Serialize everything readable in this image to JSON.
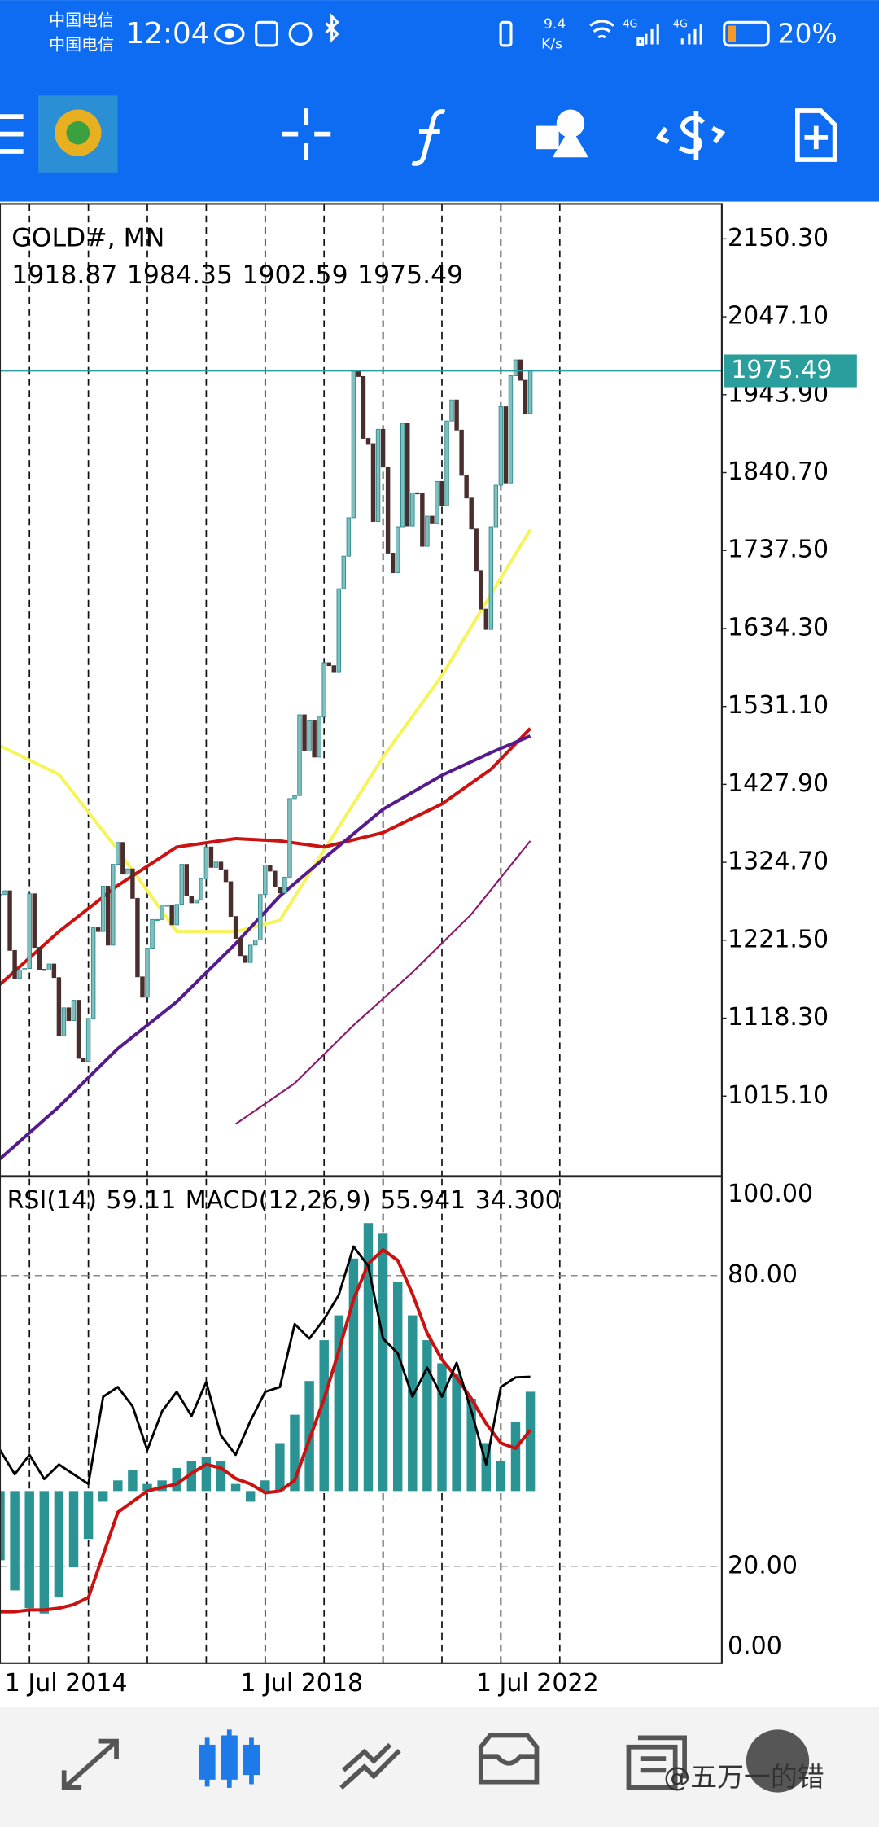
{
  "status_bar": {
    "carrier_1": "中国电信",
    "carrier_2": "中国电信",
    "time": "12:04",
    "net_speed": "9.4",
    "net_unit": "K/s",
    "network_1": "4G",
    "network_2": "4G",
    "battery": "20%"
  },
  "chart_data": [
    {
      "type": "candlestick",
      "title": "GOLD#, MN",
      "ohlc": [
        1918.87,
        1984.35,
        1902.59,
        1975.49
      ],
      "current_price": 1975.49,
      "current_price_color": "#2a9d9d",
      "up_color": "#7fbfbf",
      "down_color": "#4a2e2e",
      "x": [
        "2014-07-01",
        "2014-08-01",
        "2014-09-01",
        "2014-10-01",
        "2014-11-01",
        "2014-12-01",
        "2015-01-01",
        "2015-02-01",
        "2015-03-01",
        "2015-04-01",
        "2015-05-01",
        "2015-06-01",
        "2015-07-01",
        "2015-08-01",
        "2015-09-01",
        "2015-10-01",
        "2015-11-01",
        "2015-12-01",
        "2016-01-01",
        "2016-02-01",
        "2016-03-01",
        "2016-04-01",
        "2016-05-01",
        "2016-06-01",
        "2016-07-01",
        "2016-08-01",
        "2016-09-01",
        "2016-10-01",
        "2016-11-01",
        "2016-12-01",
        "2017-01-01",
        "2017-02-01",
        "2017-03-01",
        "2017-04-01",
        "2017-05-01",
        "2017-06-01",
        "2017-07-01",
        "2017-08-01",
        "2017-09-01",
        "2017-10-01",
        "2017-11-01",
        "2017-12-01",
        "2018-01-01",
        "2018-02-01",
        "2018-03-01",
        "2018-04-01",
        "2018-05-01",
        "2018-06-01",
        "2018-07-01",
        "2018-08-01",
        "2018-09-01",
        "2018-10-01",
        "2018-11-01",
        "2018-12-01",
        "2019-01-01",
        "2019-02-01",
        "2019-03-01",
        "2019-04-01",
        "2019-05-01",
        "2019-06-01",
        "2019-07-01",
        "2019-08-01",
        "2019-09-01",
        "2019-10-01",
        "2019-11-01",
        "2019-12-01",
        "2020-01-01",
        "2020-02-01",
        "2020-03-01",
        "2020-04-01",
        "2020-05-01",
        "2020-06-01",
        "2020-07-01",
        "2020-08-01",
        "2020-09-01",
        "2020-10-01",
        "2020-11-01",
        "2020-12-01",
        "2021-01-01",
        "2021-02-01",
        "2021-03-01",
        "2021-04-01",
        "2021-05-01",
        "2021-06-01",
        "2021-07-01",
        "2021-08-01",
        "2021-09-01",
        "2021-10-01",
        "2021-11-01",
        "2021-12-01",
        "2022-01-01",
        "2022-02-01",
        "2022-03-01",
        "2022-04-01",
        "2022-05-01",
        "2022-06-01",
        "2022-07-01",
        "2022-08-01",
        "2022-09-01",
        "2022-10-01",
        "2022-11-01",
        "2022-12-01",
        "2023-01-01",
        "2023-02-01",
        "2023-03-01",
        "2023-04-01",
        "2023-05-01",
        "2023-06-01",
        "2023-07-01"
      ],
      "values": [
        1282,
        1287,
        1208,
        1171,
        1182,
        1184,
        1283,
        1212,
        1183,
        1182,
        1190,
        1172,
        1095,
        1132,
        1115,
        1142,
        1065,
        1061,
        1118,
        1238,
        1233,
        1293,
        1215,
        1322,
        1351,
        1309,
        1316,
        1277,
        1173,
        1146,
        1211,
        1249,
        1249,
        1268,
        1268,
        1242,
        1269,
        1322,
        1280,
        1271,
        1275,
        1303,
        1345,
        1318,
        1325,
        1315,
        1299,
        1253,
        1224,
        1201,
        1192,
        1215,
        1222,
        1282,
        1321,
        1313,
        1292,
        1284,
        1305,
        1409,
        1413,
        1520,
        1472,
        1513,
        1464,
        1517,
        1589,
        1585,
        1577,
        1687,
        1730,
        1781,
        1975,
        1968,
        1886,
        1879,
        1776,
        1898,
        1848,
        1734,
        1708,
        1769,
        1906,
        1770,
        1814,
        1813,
        1743,
        1783,
        1774,
        1829,
        1797,
        1909,
        1937,
        1897,
        1837,
        1807,
        1766,
        1711,
        1660,
        1633,
        1769,
        1824,
        1928,
        1827,
        1969,
        1990,
        1963,
        1919,
        1975.49
      ],
      "overlays": [
        {
          "color": "#f5f55a",
          "x": [
            "2014-07-01",
            "2015-07-01",
            "2016-07-01",
            "2017-07-01",
            "2018-07-01",
            "2019-04-01",
            "2020-01-01",
            "2021-01-01",
            "2022-01-01",
            "2022-11-01",
            "2023-07-01"
          ],
          "values": [
            1479,
            1441,
            1341,
            1233,
            1233,
            1248,
            1341,
            1464,
            1572,
            1680,
            1765
          ]
        },
        {
          "color": "#cc1111",
          "x": [
            "2014-07-01",
            "2015-07-01",
            "2016-07-01",
            "2017-07-01",
            "2018-07-01",
            "2019-04-01",
            "2020-01-01",
            "2021-01-01",
            "2022-01-01",
            "2022-11-01",
            "2023-07-01"
          ],
          "values": [
            1163,
            1233,
            1294,
            1345,
            1356,
            1353,
            1345,
            1364,
            1402,
            1448,
            1502
          ]
        },
        {
          "color": "#551a8b",
          "x": [
            "2014-07-01",
            "2015-07-01",
            "2016-07-01",
            "2017-07-01",
            "2018-07-01",
            "2019-04-01",
            "2020-01-01",
            "2021-01-01",
            "2022-01-01",
            "2022-11-01",
            "2023-07-01"
          ],
          "values": [
            932,
            1001,
            1078,
            1140,
            1217,
            1280,
            1330,
            1395,
            1440,
            1470,
            1492
          ]
        },
        {
          "color": "#8b1a6b",
          "x": [
            "2018-07-01",
            "2019-07-01",
            "2020-07-01",
            "2021-07-01",
            "2022-07-01",
            "2023-07-01"
          ],
          "values": [
            978,
            1032,
            1109,
            1179,
            1256,
            1353
          ]
        }
      ],
      "xlim": [
        "2014-07-01",
        "2026-10-01"
      ],
      "xticks": [
        {
          "value": "2014-07-01",
          "label": "1 Jul 2014"
        },
        {
          "value": "2018-07-01",
          "label": "1 Jul 2018"
        },
        {
          "value": "2022-07-01",
          "label": "1 Jul 2022"
        }
      ],
      "xgrid": [
        "2015-01-01",
        "2016-01-01",
        "2017-01-01",
        "2018-01-01",
        "2019-01-01",
        "2020-01-01",
        "2021-01-01",
        "2022-01-01",
        "2023-01-01",
        "2024-01-01"
      ],
      "ylim": [
        908.8,
        2196.6
      ],
      "yticks": [
        {
          "value": 2150.3,
          "label": "2150.30"
        },
        {
          "value": 2047.1,
          "label": "2047.10"
        },
        {
          "value": 1943.9,
          "label": "1943.90"
        },
        {
          "value": 1840.7,
          "label": "1840.70"
        },
        {
          "value": 1737.5,
          "label": "1737.50"
        },
        {
          "value": 1634.3,
          "label": "1634.30"
        },
        {
          "value": 1531.1,
          "label": "1531.10"
        },
        {
          "value": 1427.9,
          "label": "1427.90"
        },
        {
          "value": 1324.7,
          "label": "1324.70"
        },
        {
          "value": 1221.5,
          "label": "1221.50"
        },
        {
          "value": 1118.3,
          "label": "1118.30"
        },
        {
          "value": 1015.1,
          "label": "1015.10"
        }
      ]
    },
    {
      "type": "indicator",
      "rsi_label": "RSI(14)",
      "rsi_value": 59.11,
      "macd_label": "MACD(12,26,9)",
      "macd_value": 55.941,
      "macd_signal_value": {
        "value": 34.3,
        "label": "34.300"
      },
      "x": [
        "2014-07-01",
        "2014-10-01",
        "2015-01-01",
        "2015-04-01",
        "2015-07-01",
        "2015-10-01",
        "2016-01-01",
        "2016-04-01",
        "2016-07-01",
        "2016-10-01",
        "2017-01-01",
        "2017-04-01",
        "2017-07-01",
        "2017-10-01",
        "2018-01-01",
        "2018-04-01",
        "2018-07-01",
        "2018-10-01",
        "2019-01-01",
        "2019-04-01",
        "2019-07-01",
        "2019-10-01",
        "2020-01-01",
        "2020-04-01",
        "2020-07-01",
        "2020-10-01",
        "2021-01-01",
        "2021-04-01",
        "2021-07-01",
        "2021-10-01",
        "2022-01-01",
        "2022-04-01",
        "2022-07-01",
        "2022-10-01",
        "2023-01-01",
        "2023-04-01",
        "2023-07-01"
      ],
      "series": [
        {
          "style": "histogram",
          "axis": "y2",
          "color": "#2a9494",
          "values": [
            -39,
            -56,
            -66,
            -69,
            -60,
            -43,
            -27,
            -6,
            6,
            12,
            4,
            6,
            13,
            17,
            19,
            17,
            4,
            -6,
            6,
            27,
            43,
            62,
            85,
            99,
            131,
            151,
            145,
            118,
            99,
            85,
            72,
            66,
            52,
            27,
            17,
            39,
            55.941
          ]
        },
        {
          "style": "line",
          "axis": "y2",
          "color": "#cc1111",
          "values": [
            -68,
            -68,
            -67,
            -67,
            -66,
            -64,
            -60,
            -36,
            -12,
            -6,
            0,
            2,
            4,
            10,
            15,
            13,
            7,
            4,
            -1,
            0,
            6,
            29,
            52,
            79,
            108,
            128,
            136,
            130,
            111,
            89,
            74,
            64,
            52,
            38,
            27,
            24,
            34.3
          ]
        },
        {
          "style": "line",
          "color": "#000000",
          "values": [
            44,
            39,
            43,
            38,
            41,
            39,
            37,
            55,
            57,
            53,
            44,
            52,
            56,
            51,
            58,
            47,
            43,
            50,
            56,
            57,
            70,
            67,
            71,
            76,
            86,
            82,
            67,
            64,
            55,
            61,
            55,
            62,
            52,
            41,
            57,
            59,
            59.11
          ]
        }
      ],
      "xlim": [
        "2014-07-01",
        "2026-10-01"
      ],
      "xgrid": [
        "2015-01-01",
        "2016-01-01",
        "2017-01-01",
        "2018-01-01",
        "2019-01-01",
        "2020-01-01",
        "2021-01-01",
        "2022-01-01",
        "2023-01-01",
        "2024-01-01"
      ],
      "ylim": [
        0,
        100
      ],
      "yticks": [
        {
          "value": 100,
          "label": "100.00"
        },
        {
          "value": 80,
          "label": "80.00"
        },
        {
          "value": 20,
          "label": "20.00"
        },
        {
          "value": 0,
          "label": "0.00"
        }
      ],
      "y2lim": [
        -97,
        176
      ]
    }
  ],
  "watermark": "@五万一的错"
}
